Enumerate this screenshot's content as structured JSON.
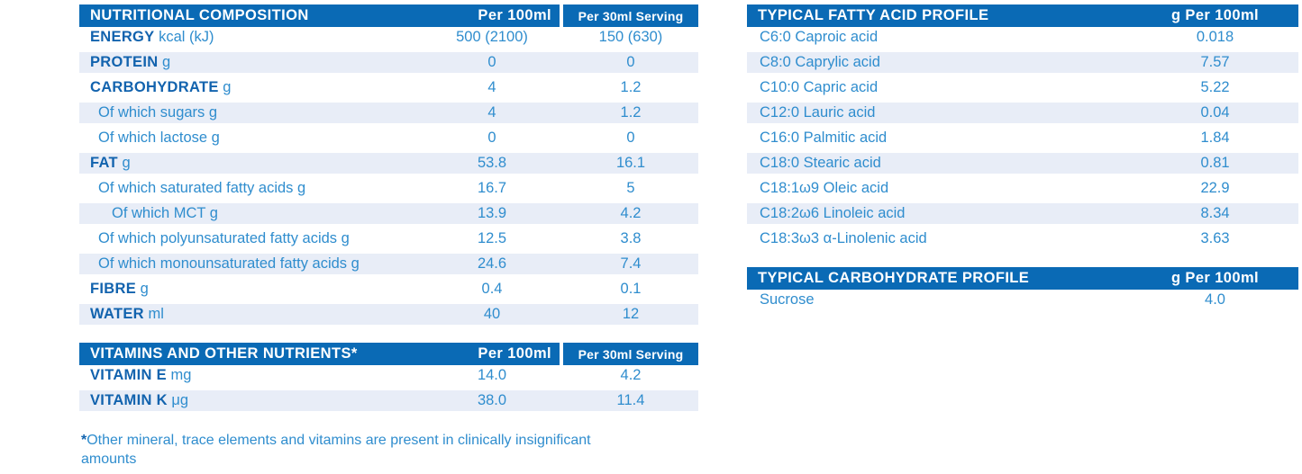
{
  "colors": {
    "header_bg": "#0a6ab5",
    "row_stripe": "#e8edf7",
    "label_dark_blue": "#1263ae",
    "text_light_blue": "#2f8dce"
  },
  "tables": {
    "nutrition": {
      "title": "NUTRITIONAL COMPOSITION",
      "col_per_100ml": "Per 100ml",
      "col_per_30ml": "Per 30ml Serving",
      "rows": [
        {
          "label": "ENERGY",
          "unit": "kcal (kJ)",
          "style": "main",
          "per_100ml": "500 (2100)",
          "per_30ml": "150 (630)"
        },
        {
          "label": "PROTEIN",
          "unit": "g",
          "style": "main",
          "per_100ml": "0",
          "per_30ml": "0"
        },
        {
          "label": "CARBOHYDRATE",
          "unit": "g",
          "style": "main",
          "per_100ml": "4",
          "per_30ml": "1.2"
        },
        {
          "label": "Of which sugars g",
          "unit": "",
          "style": "sub",
          "per_100ml": "4",
          "per_30ml": "1.2"
        },
        {
          "label": "Of which lactose g",
          "unit": "",
          "style": "sub",
          "per_100ml": "0",
          "per_30ml": "0"
        },
        {
          "label": "FAT",
          "unit": "g",
          "style": "main",
          "per_100ml": "53.8",
          "per_30ml": "16.1"
        },
        {
          "label": "Of which saturated fatty acids g",
          "unit": "",
          "style": "sub",
          "per_100ml": "16.7",
          "per_30ml": "5"
        },
        {
          "label": "Of which MCT g",
          "unit": "",
          "style": "sub2",
          "per_100ml": "13.9",
          "per_30ml": "4.2"
        },
        {
          "label": "Of which polyunsaturated fatty acids g",
          "unit": "",
          "style": "sub",
          "per_100ml": "12.5",
          "per_30ml": "3.8"
        },
        {
          "label": "Of which monounsaturated fatty acids g",
          "unit": "",
          "style": "sub",
          "per_100ml": "24.6",
          "per_30ml": "7.4"
        },
        {
          "label": "FIBRE",
          "unit": "g",
          "style": "main",
          "per_100ml": "0.4",
          "per_30ml": "0.1"
        },
        {
          "label": "WATER",
          "unit": "ml",
          "style": "main",
          "per_100ml": "40",
          "per_30ml": "12"
        }
      ]
    },
    "vitamins": {
      "title": "VITAMINS AND OTHER NUTRIENTS*",
      "col_per_100ml": "Per 100ml",
      "col_per_30ml": "Per 30ml Serving",
      "rows": [
        {
          "label": "VITAMIN E",
          "unit": "mg",
          "style": "main",
          "per_100ml": "14.0",
          "per_30ml": "4.2"
        },
        {
          "label": "VITAMIN K",
          "unit": "μg",
          "style": "main",
          "per_100ml": "38.0",
          "per_30ml": "11.4"
        }
      ]
    },
    "fatty_acid": {
      "title": "TYPICAL FATTY ACID PROFILE",
      "col_value": "g Per 100ml",
      "rows": [
        {
          "label": "C6:0 Caproic acid",
          "value": "0.018"
        },
        {
          "label": "C8:0 Caprylic acid",
          "value": "7.57"
        },
        {
          "label": "C10:0 Capric acid",
          "value": "5.22"
        },
        {
          "label": "C12:0 Lauric acid",
          "value": "0.04"
        },
        {
          "label": "C16:0 Palmitic acid",
          "value": "1.84"
        },
        {
          "label": "C18:0 Stearic acid",
          "value": "0.81"
        },
        {
          "label": "C18:1ω9 Oleic acid",
          "value": "22.9"
        },
        {
          "label": "C18:2ω6 Linoleic acid",
          "value": "8.34"
        },
        {
          "label": "C18:3ω3 α-Linolenic acid",
          "value": "3.63"
        }
      ]
    },
    "carbohydrate": {
      "title": "TYPICAL CARBOHYDRATE PROFILE",
      "col_value": "g Per 100ml",
      "rows": [
        {
          "label": "Sucrose",
          "value": "4.0"
        }
      ]
    }
  },
  "footnote": {
    "marker": "*",
    "text": "Other mineral, trace elements and vitamins are present in clinically insignificant amounts"
  }
}
